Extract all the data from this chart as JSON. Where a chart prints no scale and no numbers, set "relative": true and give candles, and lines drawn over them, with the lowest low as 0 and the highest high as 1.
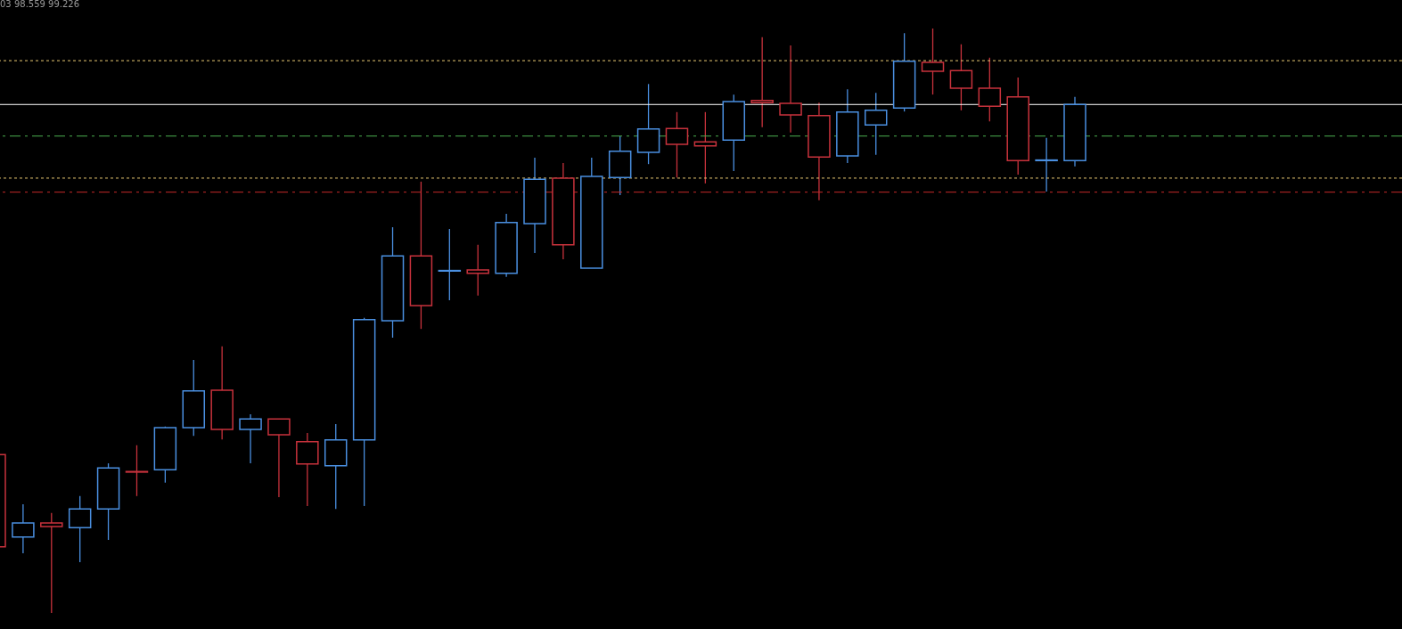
{
  "chart_data": {
    "type": "candlestick",
    "relative": true,
    "categories": [
      null,
      null,
      null,
      null,
      null,
      null,
      null,
      null,
      null,
      null,
      null,
      null,
      null,
      null,
      null,
      null,
      null,
      null,
      null,
      null,
      null,
      null,
      null,
      null,
      null,
      null,
      null,
      null,
      null,
      null,
      null,
      null,
      null,
      null,
      null,
      null,
      null,
      null,
      null
    ],
    "ohlc": [
      [
        0.271,
        0.271,
        0.113,
        0.113
      ],
      [
        0.13,
        0.186,
        0.102,
        0.154
      ],
      [
        0.154,
        0.171,
        0,
        0.148
      ],
      [
        0.146,
        0.2,
        0.087,
        0.178
      ],
      [
        0.178,
        0.256,
        0.125,
        0.248
      ],
      [
        0.242,
        0.287,
        0.2,
        0.241
      ],
      [
        0.245,
        0.319,
        0.223,
        0.317
      ],
      [
        0.317,
        0.433,
        0.303,
        0.38
      ],
      [
        0.381,
        0.456,
        0.297,
        0.314
      ],
      [
        0.314,
        0.34,
        0.256,
        0.332
      ],
      [
        0.332,
        0.332,
        0.198,
        0.305
      ],
      [
        0.293,
        0.308,
        0.183,
        0.255
      ],
      [
        0.252,
        0.323,
        0.178,
        0.296
      ],
      [
        0.296,
        0.505,
        0.183,
        0.502
      ],
      [
        0.5,
        0.66,
        0.471,
        0.611
      ],
      [
        0.611,
        0.738,
        0.486,
        0.526
      ],
      [
        0.585,
        0.657,
        0.535,
        0.586
      ],
      [
        0.587,
        0.63,
        0.543,
        0.581
      ],
      [
        0.581,
        0.683,
        0.575,
        0.668
      ],
      [
        0.666,
        0.779,
        0.616,
        0.742
      ],
      [
        0.744,
        0.77,
        0.605,
        0.63
      ],
      [
        0.59,
        0.779,
        0.59,
        0.747
      ],
      [
        0.745,
        0.816,
        0.715,
        0.79
      ],
      [
        0.788,
        0.905,
        0.768,
        0.828
      ],
      [
        0.829,
        0.857,
        0.745,
        0.802
      ],
      [
        0.806,
        0.857,
        0.735,
        0.799
      ],
      [
        0.809,
        0.887,
        0.756,
        0.875
      ],
      [
        0.877,
        0.985,
        0.831,
        0.873
      ],
      [
        0.872,
        0.971,
        0.822,
        0.852
      ],
      [
        0.851,
        0.873,
        0.706,
        0.78
      ],
      [
        0.782,
        0.896,
        0.77,
        0.857
      ],
      [
        0.835,
        0.89,
        0.784,
        0.86
      ],
      [
        0.864,
        0.992,
        0.858,
        0.944
      ],
      [
        0.942,
        1,
        0.887,
        0.927
      ],
      [
        0.928,
        0.973,
        0.86,
        0.898
      ],
      [
        0.898,
        0.95,
        0.841,
        0.867
      ],
      [
        0.883,
        0.916,
        0.75,
        0.774
      ],
      [
        0.774,
        0.813,
        0.721,
        0.775
      ],
      [
        0.774,
        0.883,
        0.764,
        0.87
      ]
    ],
    "colors": [
      "#c8323c",
      "#4a8fe0",
      "#c8323c",
      "#4a8fe0",
      "#4a8fe0",
      "#c8323c",
      "#4a8fe0",
      "#4a8fe0",
      "#c8323c",
      "#4a8fe0",
      "#c8323c",
      "#c8323c",
      "#4a8fe0",
      "#4a8fe0",
      "#4a8fe0",
      "#c8323c",
      "#4a8fe0",
      "#c8323c",
      "#4a8fe0",
      "#4a8fe0",
      "#c8323c",
      "#4a8fe0",
      "#4a8fe0",
      "#4a8fe0",
      "#c8323c",
      "#c8323c",
      "#4a8fe0",
      "#c8323c",
      "#c8323c",
      "#c8323c",
      "#4a8fe0",
      "#4a8fe0",
      "#4a8fe0",
      "#c8323c",
      "#c8323c",
      "#c8323c",
      "#c8323c",
      "#4a8fe0",
      "#4a8fe0"
    ],
    "ref_lines": [
      {
        "axis": "y",
        "value": 0.945,
        "color": "#e8c872",
        "line_style": "dotted"
      },
      {
        "axis": "y",
        "value": 0.87,
        "color": "#ffffff",
        "line_style": "solid"
      },
      {
        "axis": "y",
        "value": 0.816,
        "color": "#4caf50",
        "line_style": "dashdot"
      },
      {
        "axis": "y",
        "value": 0.744,
        "color": "#e8c872",
        "line_style": "dotted"
      },
      {
        "axis": "y",
        "value": 0.72,
        "color": "#c62828",
        "line_style": "dashdot"
      }
    ],
    "annotations": [
      "03 98.559 99.226"
    ]
  }
}
